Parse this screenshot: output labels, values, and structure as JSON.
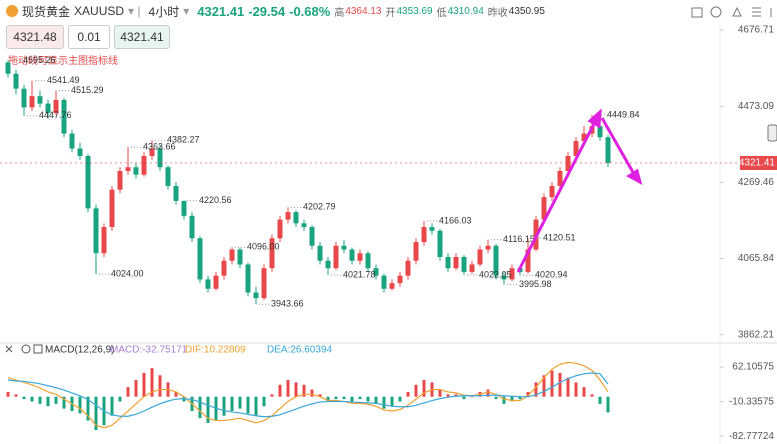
{
  "header": {
    "name": "现货黄金",
    "symbol": "XAUUSD",
    "period": "4小时",
    "price": "4321.41",
    "change": "-29.54",
    "change_pct": "-0.68%",
    "high_label": "高",
    "high": "4364.13",
    "open_label": "开",
    "open": "4353.69",
    "low_label": "低",
    "low": "4310.94",
    "prev_close_label": "昨收",
    "prev_close": "4350.95"
  },
  "order": {
    "sell": "4321.48",
    "lot": "0.01",
    "buy": "4321.41"
  },
  "hint": "拖动线可显示主图指标线",
  "chart_data": [
    {
      "type": "candlestick",
      "up_color": "#e8484a",
      "down_color": "#1aa37f",
      "ylim": [
        3848,
        4709
      ],
      "yticks": [
        4676.71,
        4473.09,
        4269.46,
        4065.84,
        3862.21
      ],
      "last_price": 4321.41,
      "ohlc": [
        [
          4590,
          4595.26,
          4550,
          4560
        ],
        [
          4560,
          4570,
          4505,
          4520
        ],
        [
          4520,
          4530,
          4447.76,
          4470
        ],
        [
          4470,
          4541.49,
          4460,
          4500
        ],
        [
          4500,
          4515,
          4470,
          4480
        ],
        [
          4480,
          4490,
          4440,
          4455
        ],
        [
          4455,
          4515.29,
          4450,
          4490
        ],
        [
          4490,
          4495,
          4390,
          4400
        ],
        [
          4400,
          4410,
          4350,
          4360
        ],
        [
          4360,
          4375,
          4330,
          4340
        ],
        [
          4340,
          4345,
          4190,
          4200
        ],
        [
          4200,
          4210,
          4024,
          4080
        ],
        [
          4080,
          4160,
          4070,
          4150
        ],
        [
          4150,
          4260,
          4140,
          4250
        ],
        [
          4250,
          4310,
          4240,
          4300
        ],
        [
          4300,
          4363.66,
          4290,
          4310
        ],
        [
          4310,
          4320,
          4280,
          4290
        ],
        [
          4290,
          4350,
          4285,
          4340
        ],
        [
          4340,
          4382.27,
          4330,
          4360
        ],
        [
          4360,
          4370,
          4300,
          4310
        ],
        [
          4310,
          4315,
          4250,
          4260
        ],
        [
          4260,
          4270,
          4210,
          4220
        ],
        [
          4220,
          4220.56,
          4170,
          4180
        ],
        [
          4180,
          4190,
          4110,
          4120
        ],
        [
          4120,
          4125,
          4000,
          4010
        ],
        [
          4010,
          4020,
          3975,
          3985
        ],
        [
          3985,
          4030,
          3980,
          4020
        ],
        [
          4020,
          4070,
          4010,
          4060
        ],
        [
          4060,
          4096,
          4050,
          4090
        ],
        [
          4090,
          4095,
          4040,
          4050
        ],
        [
          4050,
          4055,
          3965,
          3975
        ],
        [
          3975,
          3990,
          3943.66,
          3960
        ],
        [
          3960,
          4050,
          3955,
          4040
        ],
        [
          4040,
          4130,
          4030,
          4120
        ],
        [
          4120,
          4180,
          4110,
          4170
        ],
        [
          4170,
          4202.79,
          4160,
          4190
        ],
        [
          4190,
          4195,
          4150,
          4160
        ],
        [
          4160,
          4170,
          4140,
          4150
        ],
        [
          4150,
          4155,
          4090,
          4100
        ],
        [
          4100,
          4110,
          4050,
          4060
        ],
        [
          4060,
          4070,
          4021.78,
          4040
        ],
        [
          4040,
          4110,
          4035,
          4100
        ],
        [
          4100,
          4115,
          4080,
          4090
        ],
        [
          4090,
          4095,
          4050,
          4060
        ],
        [
          4060,
          4090,
          4050,
          4080
        ],
        [
          4080,
          4085,
          4030,
          4040
        ],
        [
          4040,
          4050,
          4010,
          4020
        ],
        [
          4020,
          4025,
          3975,
          3985
        ],
        [
          3985,
          4010,
          3980,
          4000
        ],
        [
          4000,
          4030,
          3990,
          4020
        ],
        [
          4020,
          4070,
          4010,
          4060
        ],
        [
          4060,
          4120,
          4050,
          4110
        ],
        [
          4110,
          4166.03,
          4100,
          4150
        ],
        [
          4150,
          4160,
          4130,
          4140
        ],
        [
          4140,
          4145,
          4060,
          4070
        ],
        [
          4070,
          4080,
          4030,
          4040
        ],
        [
          4040,
          4080,
          4035,
          4070
        ],
        [
          4070,
          4075,
          4022.05,
          4030
        ],
        [
          4030,
          4060,
          4025,
          4050
        ],
        [
          4050,
          4100,
          4045,
          4090
        ],
        [
          4090,
          4116.15,
          4080,
          4100
        ],
        [
          4100,
          4105,
          4010,
          4020
        ],
        [
          4020,
          4030,
          3995.98,
          4010
        ],
        [
          4010,
          4050,
          4005,
          4040
        ],
        [
          4040,
          4045,
          4020.94,
          4030
        ],
        [
          4030,
          4120.51,
          4025,
          4090
        ],
        [
          4090,
          4180,
          4085,
          4170
        ],
        [
          4170,
          4240,
          4160,
          4230
        ],
        [
          4230,
          4270,
          4220,
          4260
        ],
        [
          4260,
          4310,
          4250,
          4300
        ],
        [
          4300,
          4350,
          4290,
          4340
        ],
        [
          4340,
          4390,
          4330,
          4380
        ],
        [
          4380,
          4420,
          4370,
          4400
        ],
        [
          4400,
          4449.84,
          4390,
          4420
        ],
        [
          4420,
          4430,
          4380,
          4390
        ],
        [
          4390,
          4395,
          4310.94,
          4321.41
        ]
      ],
      "annotations": [
        {
          "candle": 0,
          "value": 4595.26,
          "label": "4595.26"
        },
        {
          "candle": 3,
          "value": 4541.49,
          "label": "4541.49"
        },
        {
          "candle": 6,
          "value": 4515.29,
          "label": "4515.29"
        },
        {
          "candle": 2,
          "value": 4447.76,
          "label": "4447.76"
        },
        {
          "candle": 11,
          "value": 4024,
          "label": "4024.00"
        },
        {
          "candle": 15,
          "value": 4363.66,
          "label": "4363.66"
        },
        {
          "candle": 18,
          "value": 4382.27,
          "label": "4382.27"
        },
        {
          "candle": 22,
          "value": 4220.56,
          "label": "4220.56"
        },
        {
          "candle": 28,
          "value": 4096,
          "label": "4096.00"
        },
        {
          "candle": 31,
          "value": 3943.66,
          "label": "3943.66"
        },
        {
          "candle": 35,
          "value": 4202.79,
          "label": "4202.79"
        },
        {
          "candle": 40,
          "value": 4021.78,
          "label": "4021.78"
        },
        {
          "candle": 52,
          "value": 4166.03,
          "label": "4166.03"
        },
        {
          "candle": 57,
          "value": 4022.05,
          "label": "4022.05"
        },
        {
          "candle": 60,
          "value": 4116.15,
          "label": "4116.15"
        },
        {
          "candle": 62,
          "value": 3995.98,
          "label": "3995.98"
        },
        {
          "candle": 64,
          "value": 4020.94,
          "label": "4020.94"
        },
        {
          "candle": 65,
          "value": 4120.51,
          "label": "4120.51"
        },
        {
          "candle": 73,
          "value": 4449.84,
          "label": "4449.84"
        }
      ]
    },
    {
      "type": "macd",
      "title": "MACD(12,26,9)",
      "histogram_label": "MACD:-32.75171",
      "up_color": "#e8484a",
      "down_color": "#1aa37f",
      "ylim": [
        -95,
        77
      ],
      "yticks": [
        62.10575,
        -10.33575,
        -82.77724
      ],
      "histogram": [
        10,
        5,
        -5,
        -10,
        -15,
        -20,
        -15,
        -25,
        -30,
        -35,
        -50,
        -70,
        -60,
        -40,
        -10,
        20,
        35,
        50,
        60,
        45,
        30,
        10,
        -10,
        -30,
        -45,
        -55,
        -50,
        -40,
        -30,
        -25,
        -35,
        -40,
        -20,
        5,
        25,
        35,
        30,
        25,
        15,
        5,
        -10,
        -5,
        -5,
        -10,
        -5,
        -10,
        -15,
        -25,
        -20,
        -10,
        10,
        25,
        35,
        30,
        15,
        5,
        5,
        -5,
        0,
        10,
        15,
        -5,
        -15,
        -10,
        -5,
        10,
        30,
        45,
        55,
        50,
        40,
        30,
        20,
        5,
        -15,
        -33
      ],
      "series": [
        {
          "name": "DIF:10.22809",
          "color": "#f0a030",
          "values": [
            40,
            35,
            30,
            25,
            18,
            10,
            5,
            -5,
            -15,
            -25,
            -40,
            -60,
            -65,
            -60,
            -45,
            -30,
            -15,
            0,
            10,
            15,
            15,
            10,
            0,
            -15,
            -30,
            -45,
            -50,
            -50,
            -48,
            -45,
            -50,
            -55,
            -50,
            -40,
            -25,
            -10,
            0,
            5,
            5,
            0,
            -8,
            -8,
            -10,
            -14,
            -14,
            -16,
            -20,
            -28,
            -30,
            -27,
            -18,
            -5,
            8,
            15,
            15,
            10,
            8,
            3,
            2,
            5,
            10,
            5,
            -5,
            -8,
            -8,
            2,
            20,
            40,
            58,
            68,
            72,
            70,
            65,
            55,
            35,
            10.22809
          ]
        },
        {
          "name": "DEA:26.60394",
          "color": "#3aa8d8",
          "values": [
            35,
            33,
            32,
            30,
            27,
            23,
            19,
            14,
            8,
            2,
            -6,
            -18,
            -30,
            -38,
            -41,
            -41,
            -37,
            -30,
            -22,
            -15,
            -9,
            -5,
            -4,
            -6,
            -11,
            -18,
            -24,
            -29,
            -32,
            -34,
            -37,
            -40,
            -42,
            -41,
            -38,
            -32,
            -26,
            -20,
            -15,
            -11,
            -10,
            -10,
            -10,
            -11,
            -12,
            -13,
            -14,
            -17,
            -20,
            -21,
            -21,
            -18,
            -13,
            -8,
            -4,
            -1,
            1,
            2,
            2,
            2,
            3,
            3,
            2,
            1,
            0,
            0,
            4,
            11,
            20,
            30,
            38,
            44,
            48,
            50,
            48,
            26.60394
          ]
        }
      ]
    }
  ]
}
